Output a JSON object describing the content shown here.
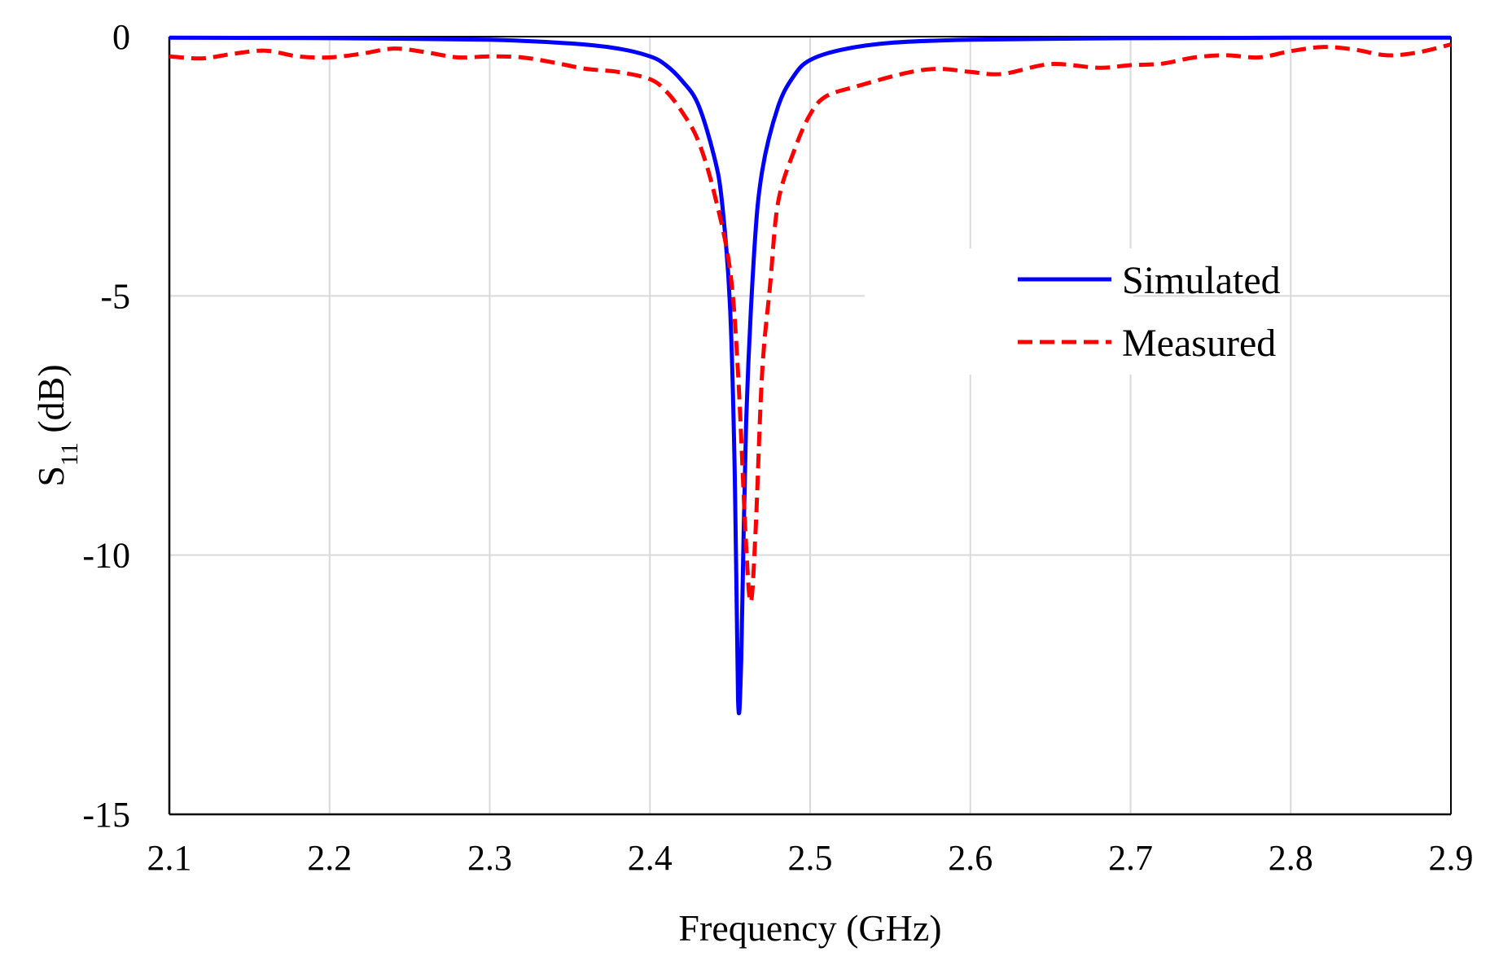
{
  "chart_data": {
    "type": "line",
    "title": "",
    "xlabel": "Frequency (GHz)",
    "ylabel_main": "S",
    "ylabel_sub": "11",
    "ylabel_suffix": " (dB)",
    "xlim": [
      2.1,
      2.9
    ],
    "ylim": [
      -15,
      0
    ],
    "x_ticks": [
      "2.1",
      "2.2",
      "2.3",
      "2.4",
      "2.5",
      "2.6",
      "2.7",
      "2.8",
      "2.9"
    ],
    "x_tick_values": [
      2.1,
      2.2,
      2.3,
      2.4,
      2.5,
      2.6,
      2.7,
      2.8,
      2.9
    ],
    "y_ticks": [
      "0",
      "-5",
      "-10",
      "-15"
    ],
    "y_tick_values": [
      0,
      -5,
      -10,
      -15
    ],
    "grid": true,
    "legend_position": "right",
    "series": [
      {
        "name": "Simulated",
        "color": "#0000ff",
        "style": "solid",
        "points": [
          [
            2.1,
            -0.02
          ],
          [
            2.2,
            -0.03
          ],
          [
            2.3,
            -0.06
          ],
          [
            2.35,
            -0.13
          ],
          [
            2.38,
            -0.23
          ],
          [
            2.4,
            -0.38
          ],
          [
            2.41,
            -0.55
          ],
          [
            2.42,
            -0.85
          ],
          [
            2.43,
            -1.3
          ],
          [
            2.44,
            -2.3
          ],
          [
            2.445,
            -3.2
          ],
          [
            2.45,
            -5.2
          ],
          [
            2.453,
            -8.5
          ],
          [
            2.455,
            -12.8
          ],
          [
            2.457,
            -12.0
          ],
          [
            2.46,
            -7.5
          ],
          [
            2.465,
            -4.2
          ],
          [
            2.47,
            -2.6
          ],
          [
            2.48,
            -1.35
          ],
          [
            2.49,
            -0.75
          ],
          [
            2.5,
            -0.45
          ],
          [
            2.52,
            -0.25
          ],
          [
            2.55,
            -0.12
          ],
          [
            2.6,
            -0.06
          ],
          [
            2.7,
            -0.03
          ],
          [
            2.8,
            -0.02
          ],
          [
            2.9,
            -0.02
          ]
        ]
      },
      {
        "name": "Measured",
        "color": "#ff0000",
        "style": "dashed",
        "points": [
          [
            2.1,
            -0.38
          ],
          [
            2.12,
            -0.42
          ],
          [
            2.14,
            -0.33
          ],
          [
            2.16,
            -0.27
          ],
          [
            2.18,
            -0.38
          ],
          [
            2.2,
            -0.4
          ],
          [
            2.22,
            -0.33
          ],
          [
            2.24,
            -0.23
          ],
          [
            2.26,
            -0.3
          ],
          [
            2.28,
            -0.4
          ],
          [
            2.3,
            -0.38
          ],
          [
            2.32,
            -0.4
          ],
          [
            2.34,
            -0.5
          ],
          [
            2.36,
            -0.62
          ],
          [
            2.38,
            -0.68
          ],
          [
            2.4,
            -0.82
          ],
          [
            2.41,
            -1.05
          ],
          [
            2.42,
            -1.45
          ],
          [
            2.43,
            -2.0
          ],
          [
            2.44,
            -3.0
          ],
          [
            2.45,
            -4.5
          ],
          [
            2.455,
            -6.5
          ],
          [
            2.46,
            -9.8
          ],
          [
            2.463,
            -10.9
          ],
          [
            2.466,
            -9.5
          ],
          [
            2.47,
            -6.5
          ],
          [
            2.475,
            -4.8
          ],
          [
            2.48,
            -3.2
          ],
          [
            2.49,
            -2.2
          ],
          [
            2.5,
            -1.5
          ],
          [
            2.51,
            -1.15
          ],
          [
            2.53,
            -0.95
          ],
          [
            2.56,
            -0.7
          ],
          [
            2.58,
            -0.62
          ],
          [
            2.6,
            -0.68
          ],
          [
            2.62,
            -0.72
          ],
          [
            2.65,
            -0.53
          ],
          [
            2.68,
            -0.6
          ],
          [
            2.7,
            -0.55
          ],
          [
            2.72,
            -0.52
          ],
          [
            2.74,
            -0.4
          ],
          [
            2.76,
            -0.36
          ],
          [
            2.78,
            -0.4
          ],
          [
            2.8,
            -0.28
          ],
          [
            2.82,
            -0.2
          ],
          [
            2.84,
            -0.25
          ],
          [
            2.86,
            -0.36
          ],
          [
            2.88,
            -0.3
          ],
          [
            2.9,
            -0.15
          ]
        ]
      }
    ]
  }
}
